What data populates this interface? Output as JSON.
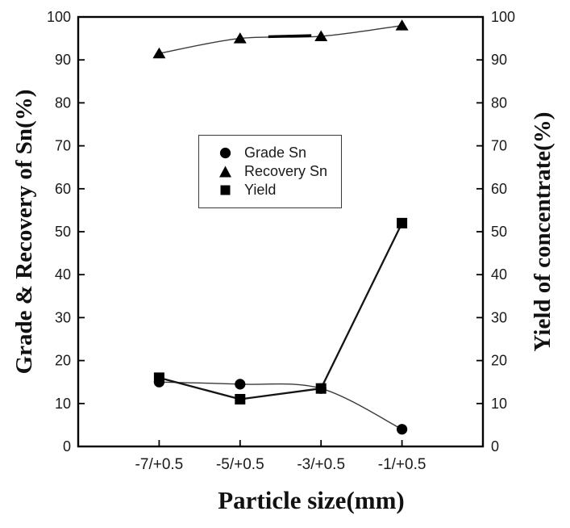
{
  "chart_data": {
    "type": "line",
    "categories": [
      "-7/+0.5",
      "-5/+0.5",
      "-3/+0.5",
      "-1/+0.5"
    ],
    "series": [
      {
        "name": "Grade Sn",
        "marker": "circle",
        "smooth": true,
        "values": [
          15,
          14.5,
          13.5,
          4
        ]
      },
      {
        "name": "Recovery Sn",
        "marker": "triangle",
        "smooth": true,
        "values": [
          91.5,
          95,
          95.5,
          98
        ]
      },
      {
        "name": "Yield",
        "marker": "square",
        "smooth": false,
        "values": [
          16,
          11,
          13.5,
          52
        ]
      }
    ],
    "xlabel": "Particle size(mm)",
    "ylabel_left": "Grade & Recovery of Sn(%)",
    "ylabel_right": "Yield of concentrate(%)",
    "ylim": [
      0,
      100
    ],
    "y_tick_values": [
      0,
      10,
      20,
      30,
      40,
      50,
      60,
      70,
      80,
      90,
      100
    ],
    "grid": false,
    "legend_position": "upper-middle-left",
    "colors": {
      "marker": "#000000",
      "thin_line": "#3a3a3a",
      "thick_line": "#141414",
      "frame": "#000000",
      "tick_label": "#1a1a1a",
      "background": "#ffffff"
    }
  }
}
